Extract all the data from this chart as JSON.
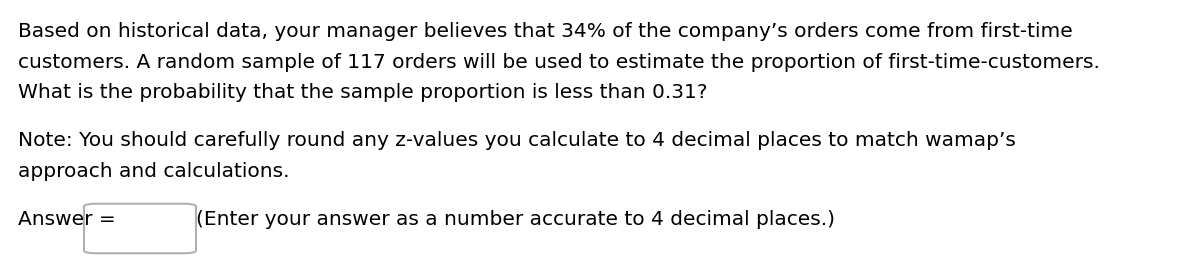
{
  "background_color": "#ffffff",
  "text_color": "#000000",
  "font_size": 14.5,
  "line1": "Based on historical data, your manager believes that 34% of the company’s orders come from first-time",
  "line2": "customers. A random sample of 117 orders will be used to estimate the proportion of first-time-customers.",
  "line3": "What is the probability that the sample proportion is less than 0.31?",
  "line4": "Note: You should carefully round any z-values you calculate to 4 decimal places to match wamap’s",
  "line5": "approach and calculations.",
  "answer_label": "Answer = ",
  "answer_note": "(Enter your answer as a number accurate to 4 decimal places.)"
}
